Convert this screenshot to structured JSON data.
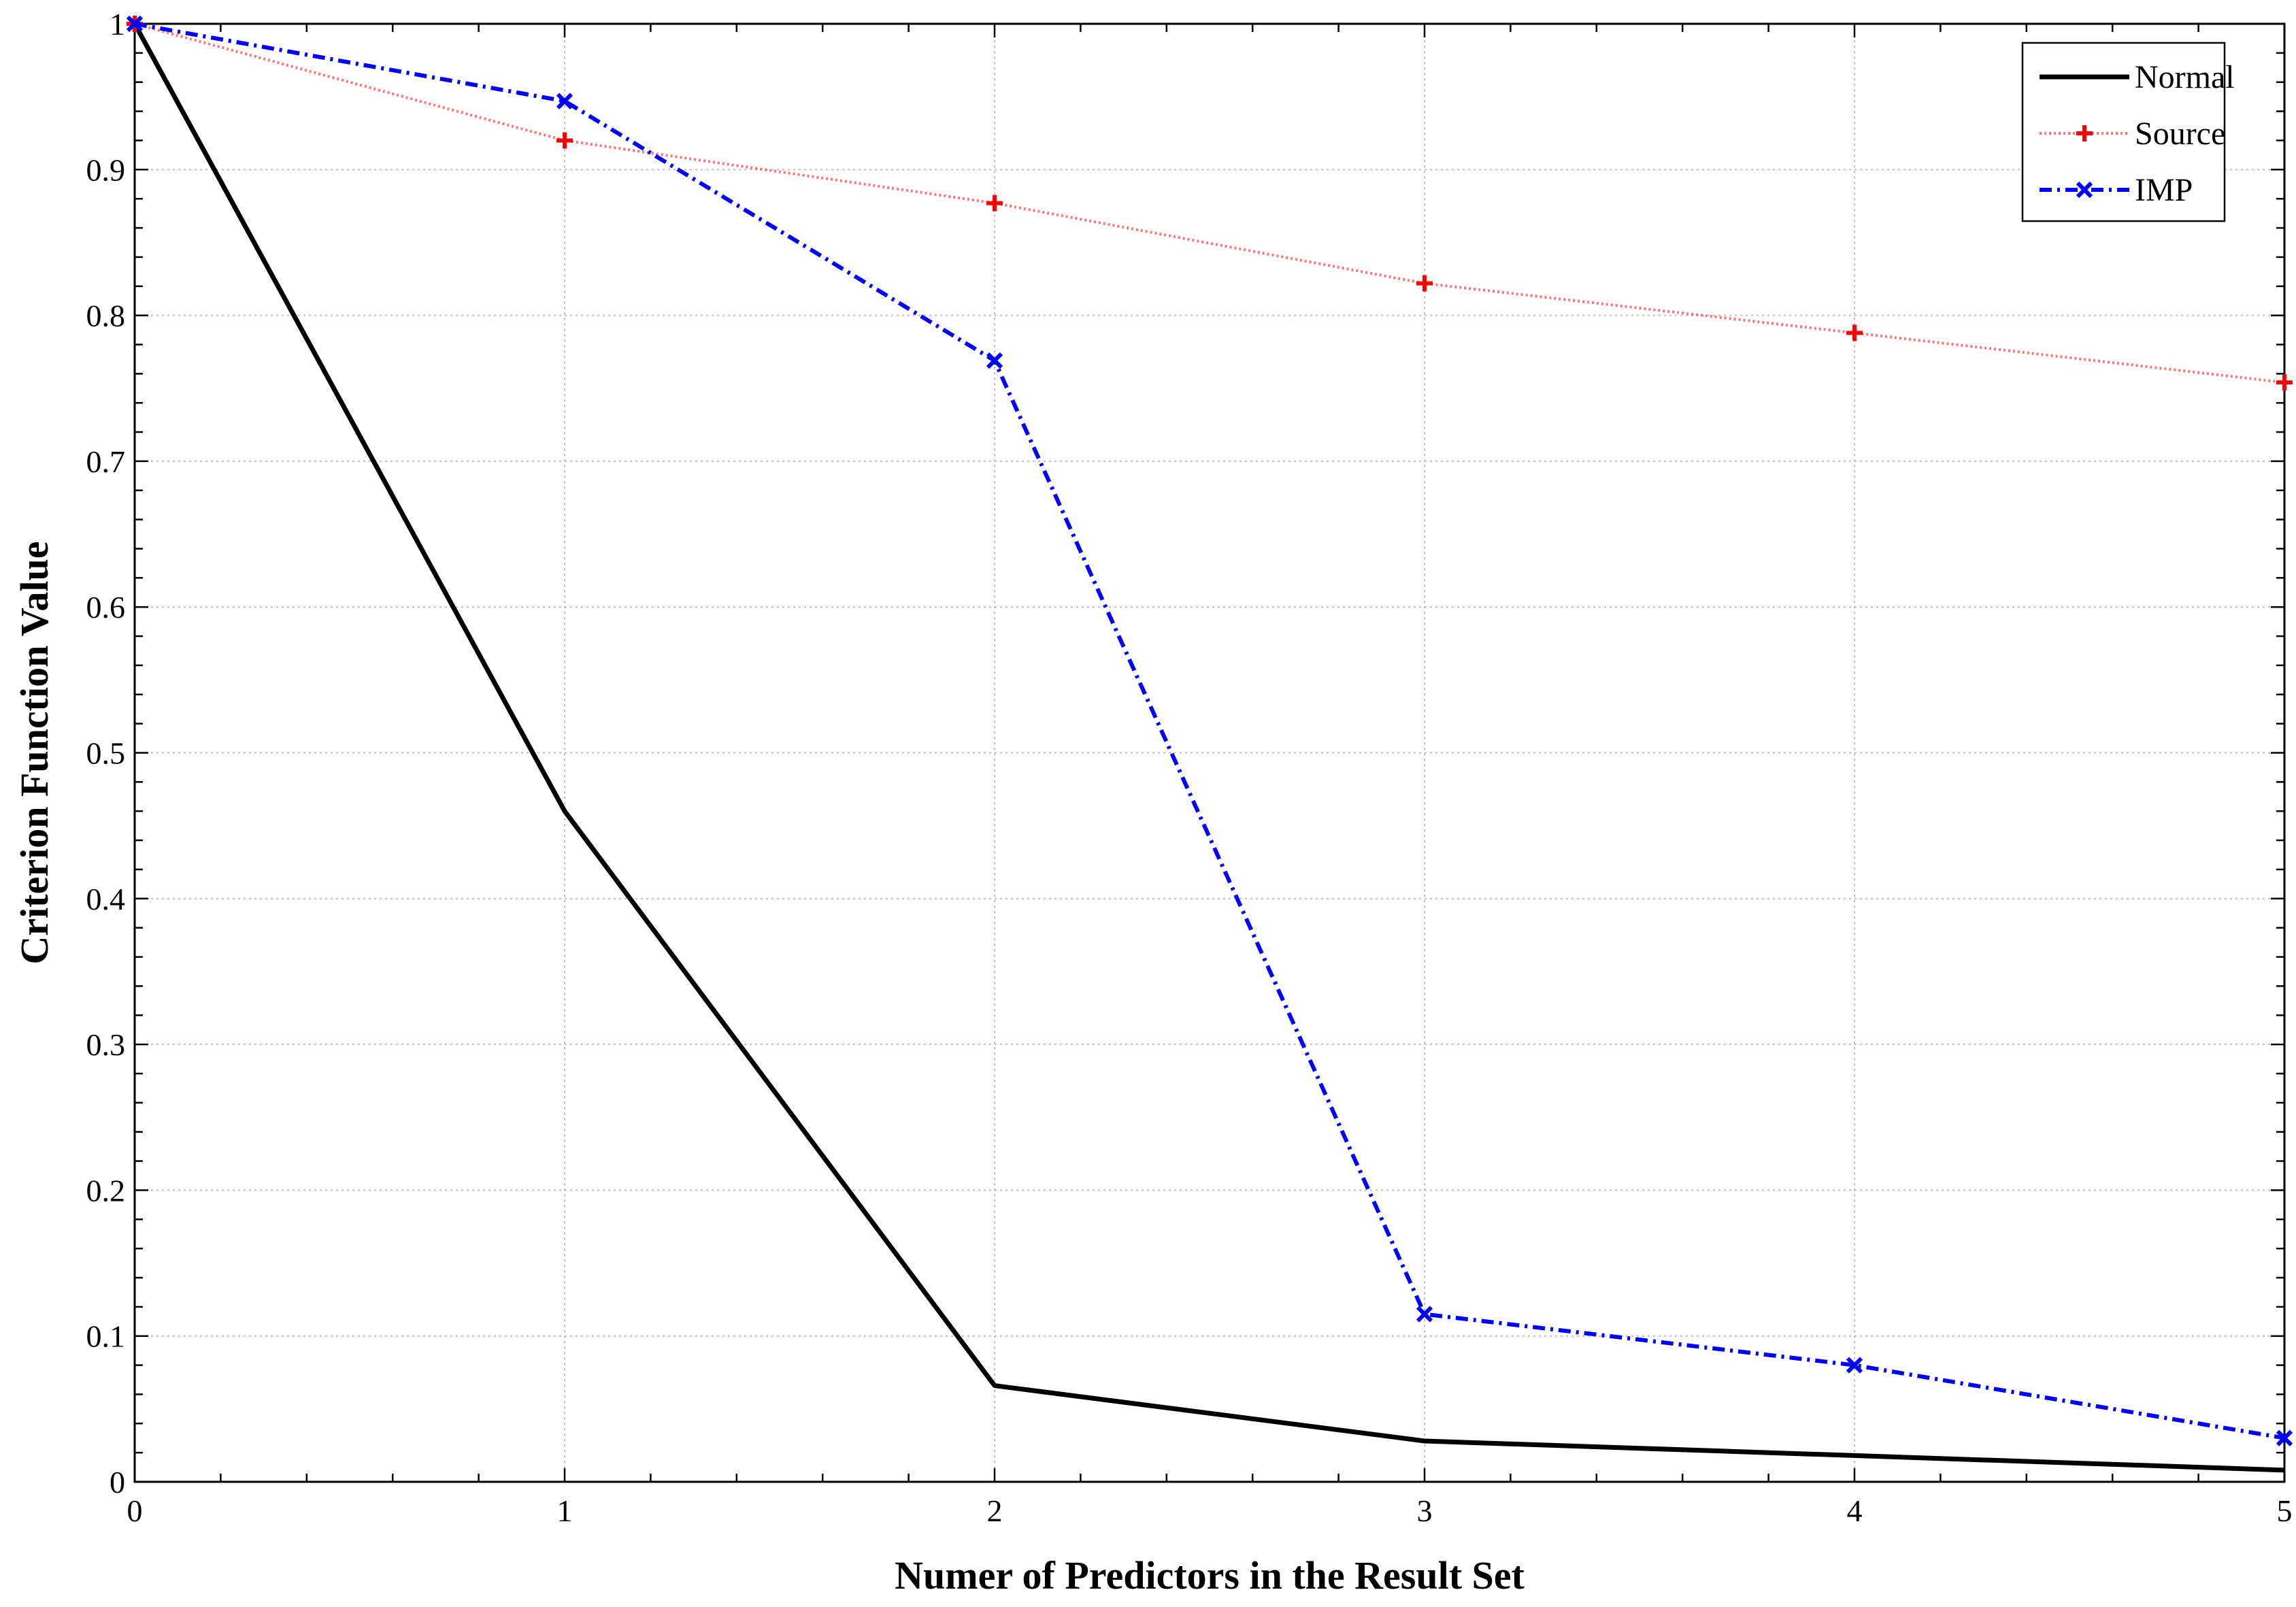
{
  "chart_data": {
    "type": "line",
    "xlabel": "Numer of Predictors in the Result Set",
    "ylabel": "Criterion Function Value",
    "xlim": [
      0,
      5
    ],
    "ylim": [
      0,
      1
    ],
    "x": [
      0,
      1,
      2,
      3,
      4,
      5
    ],
    "x_tick_labels": [
      "0",
      "1",
      "2",
      "3",
      "4",
      "5"
    ],
    "y_tick_labels": [
      "0",
      "0.1",
      "0.2",
      "0.3",
      "0.4",
      "0.5",
      "0.6",
      "0.7",
      "0.8",
      "0.9",
      "1"
    ],
    "y_ticks": [
      0,
      0.1,
      0.2,
      0.3,
      0.4,
      0.5,
      0.6,
      0.7,
      0.8,
      0.9,
      1
    ],
    "grid": true,
    "legend_position": "top-right",
    "series": [
      {
        "name": "Normal",
        "values": [
          1.0,
          0.46,
          0.066,
          0.028,
          0.018,
          0.008
        ],
        "color": "#000000",
        "line_style": "solid",
        "marker": "none"
      },
      {
        "name": "Source",
        "values": [
          1.0,
          0.92,
          0.877,
          0.822,
          0.788,
          0.754
        ],
        "color": "#ff0000",
        "line_style": "dotted",
        "marker": "plus"
      },
      {
        "name": "IMP",
        "values": [
          1.0,
          0.947,
          0.769,
          0.115,
          0.08,
          0.03
        ],
        "color": "#0000ff",
        "line_style": "dash-dot",
        "marker": "x"
      }
    ]
  }
}
